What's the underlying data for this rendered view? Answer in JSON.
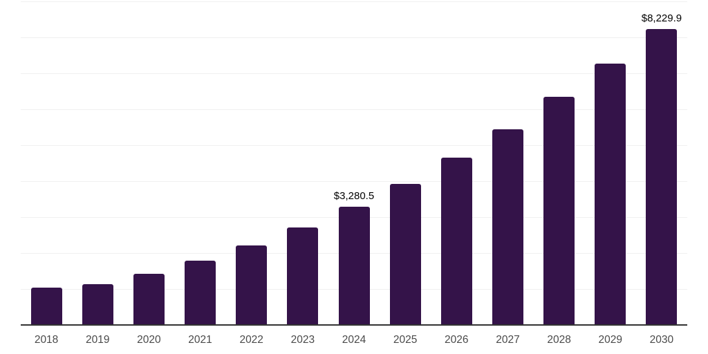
{
  "chart_data": {
    "type": "bar",
    "title": "",
    "xlabel": "",
    "ylabel": "",
    "categories": [
      "2018",
      "2019",
      "2020",
      "2021",
      "2022",
      "2023",
      "2024",
      "2025",
      "2026",
      "2027",
      "2028",
      "2029",
      "2030"
    ],
    "values": [
      1030,
      1135,
      1430,
      1790,
      2220,
      2710,
      3280.5,
      3920,
      4660,
      5450,
      6340,
      7260,
      8229.9
    ],
    "data_labels": [
      "",
      "",
      "",
      "",
      "",
      "",
      "$3,280.5",
      "",
      "",
      "",
      "",
      "",
      "$8,229.9"
    ],
    "ylim": [
      0,
      9000
    ],
    "gridline_step": 1000,
    "grid_on": true,
    "y_tick_labels_shown": false,
    "legend": "none",
    "colors": {
      "bar": "#341349",
      "grid": "#f0f0f0",
      "axis": "#333333",
      "data_label": "#000000",
      "tick_label": "#4a4a4a"
    }
  }
}
